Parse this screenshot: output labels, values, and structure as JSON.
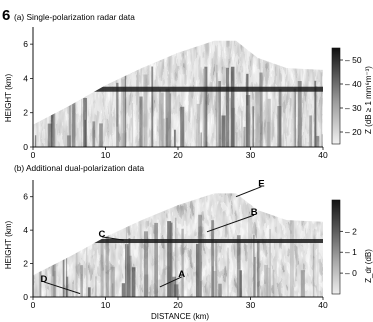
{
  "figure_number": "6",
  "panels": [
    {
      "id": "a",
      "title": "(a) Single-polarization radar data",
      "ylabel": "HEIGHT (km)",
      "xlabel": "",
      "x_ticks": [
        "0",
        "10",
        "20",
        "30",
        "40"
      ],
      "y_ticks": [
        "0",
        "2",
        "4",
        "6"
      ],
      "colorbar_label": "Z (dB ≥ 1 mm⁶m⁻³)",
      "colorbar_ticks": [
        "50",
        "40",
        "30",
        "20"
      ],
      "annotations": []
    },
    {
      "id": "b",
      "title": "(b) Additional dual-polarization data",
      "ylabel": "HEIGHT (km)",
      "xlabel": "DISTANCE (km)",
      "x_ticks": [
        "0",
        "10",
        "20",
        "30",
        "40"
      ],
      "y_ticks": [
        "0",
        "2",
        "4",
        "6"
      ],
      "colorbar_label": "Z_dr (dB)",
      "colorbar_ticks": [
        "2",
        "1",
        "0"
      ],
      "annotations": [
        "A",
        "B",
        "C",
        "D",
        "E"
      ]
    }
  ],
  "chart_data": [
    {
      "type": "heatmap",
      "title": "(a) Single-polarization radar data",
      "xlabel": "",
      "ylabel": "HEIGHT (km)",
      "xlim": [
        0,
        40
      ],
      "ylim": [
        0,
        7
      ],
      "x_ticks": [
        0,
        10,
        20,
        30,
        40
      ],
      "y_ticks": [
        0,
        2,
        4,
        6
      ],
      "colorbar": {
        "label": "Z (dB ≥ 1 mm⁶m⁻³)",
        "ticks": [
          50,
          40,
          30,
          20
        ],
        "range": [
          15,
          55
        ]
      },
      "region": {
        "top_profile": [
          [
            0,
            1.3
          ],
          [
            5,
            2.4
          ],
          [
            10,
            3.6
          ],
          [
            15,
            4.6
          ],
          [
            20,
            5.5
          ],
          [
            25,
            6.2
          ],
          [
            28,
            6.2
          ],
          [
            31,
            5.2
          ],
          [
            35,
            4.6
          ],
          [
            40,
            4.5
          ]
        ]
      },
      "bright_band_km": 3.4
    },
    {
      "type": "heatmap",
      "title": "(b) Additional dual-polarization data",
      "xlabel": "DISTANCE (km)",
      "ylabel": "HEIGHT (km)",
      "xlim": [
        0,
        40
      ],
      "ylim": [
        0,
        7
      ],
      "x_ticks": [
        0,
        10,
        20,
        30,
        40
      ],
      "y_ticks": [
        0,
        2,
        4,
        6
      ],
      "colorbar": {
        "label": "Z_dr (dB)",
        "ticks": [
          2,
          1,
          0
        ],
        "range": [
          -1,
          3.5
        ]
      },
      "region": {
        "top_profile": [
          [
            0,
            1.3
          ],
          [
            5,
            2.4
          ],
          [
            10,
            3.6
          ],
          [
            15,
            4.6
          ],
          [
            20,
            5.5
          ],
          [
            25,
            6.2
          ],
          [
            28,
            6.2
          ],
          [
            31,
            5.2
          ],
          [
            35,
            4.6
          ],
          [
            40,
            4.5
          ]
        ]
      },
      "annotations": [
        {
          "label": "A",
          "x": 20.5,
          "y": 1.2
        },
        {
          "label": "B",
          "x": 30.5,
          "y": 4.9
        },
        {
          "label": "C",
          "x": 9.5,
          "y": 3.6
        },
        {
          "label": "D",
          "x": 1.5,
          "y": 0.9
        },
        {
          "label": "E",
          "x": 31.5,
          "y": 6.6
        }
      ]
    }
  ]
}
